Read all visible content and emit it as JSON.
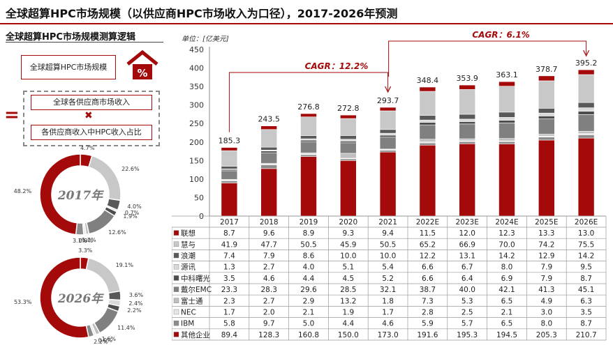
{
  "page": {
    "title": "全球超算HPC市场规模（以供应商HPC市场收入为口径），2017-2026年预测",
    "subtitle": "全球超算HPC市场规模测算逻辑",
    "logic": {
      "market_label": "全球超算HPC市场规模",
      "equals": "=",
      "factor1": "全球各供应商市场收入",
      "times": "✖",
      "factor2": "各供应商收入中HPC收入占比"
    },
    "house_icon": "percent-house-icon",
    "colors": {
      "accent": "#a50a0a"
    }
  },
  "donuts": [
    {
      "center": "2017年",
      "slices": [
        {
          "label": "4.7%",
          "value": 4.7,
          "color": "#a50a0a"
        },
        {
          "label": "22.6%",
          "value": 22.6,
          "color": "#c8c8c8"
        },
        {
          "label": "4.0%",
          "value": 4.0,
          "color": "#595959"
        },
        {
          "label": "0.7%",
          "value": 0.7,
          "color": "#d9d9d9"
        },
        {
          "label": "1.9%",
          "value": 1.9,
          "color": "#4d4d4d"
        },
        {
          "label": "12.6%",
          "value": 12.6,
          "color": "#808080"
        },
        {
          "label": "1.2%",
          "value": 1.2,
          "color": "#bfbfbf"
        },
        {
          "label": "0.9%",
          "value": 0.9,
          "color": "#e6e6e6"
        },
        {
          "label": "3.1%",
          "value": 3.1,
          "color": "#8c8c8c"
        },
        {
          "label": "48.2%",
          "value": 48.2,
          "color": "#a50a0a"
        }
      ]
    },
    {
      "center": "2026年",
      "slices": [
        {
          "label": "3.3%",
          "value": 3.3,
          "color": "#a50a0a"
        },
        {
          "label": "19.1%",
          "value": 19.1,
          "color": "#c8c8c8"
        },
        {
          "label": "3.6%",
          "value": 3.6,
          "color": "#595959"
        },
        {
          "label": "2.4%",
          "value": 2.4,
          "color": "#d9d9d9"
        },
        {
          "label": "2.2%",
          "value": 2.2,
          "color": "#4d4d4d"
        },
        {
          "label": "11.4%",
          "value": 11.4,
          "color": "#808080"
        },
        {
          "label": "1.6%",
          "value": 1.6,
          "color": "#bfbfbf"
        },
        {
          "label": "0.9%",
          "value": 0.9,
          "color": "#e6e6e6"
        },
        {
          "label": "2.2%",
          "value": 2.2,
          "color": "#8c8c8c"
        },
        {
          "label": "53.3%",
          "value": 53.3,
          "color": "#a50a0a"
        }
      ]
    }
  ],
  "chart_data": {
    "type": "bar",
    "stacked": true,
    "unit_label": "单位：[亿美元]",
    "ylim": [
      0,
      450
    ],
    "yticks": [
      0,
      50,
      100,
      150,
      200,
      250,
      300,
      350,
      400,
      450
    ],
    "categories": [
      "2017",
      "2018",
      "2019",
      "2020",
      "2021",
      "2022E",
      "2023E",
      "2024E",
      "2025E",
      "2026E"
    ],
    "totals": [
      185.3,
      243.5,
      276.8,
      272.8,
      293.7,
      348.4,
      353.9,
      363.1,
      378.7,
      395.2
    ],
    "series": [
      {
        "name": "其他企业",
        "color": "#a50a0a",
        "values": [
          89.4,
          128.3,
          160.8,
          150.0,
          173.0,
          191.6,
          195.3,
          194.5,
          205.3,
          210.7
        ]
      },
      {
        "name": "IBM",
        "color": "#8c8c8c",
        "values": [
          5.8,
          9.7,
          5.0,
          4.4,
          4.6,
          5.9,
          5.7,
          6.5,
          8.0,
          8.7
        ]
      },
      {
        "name": "NEC",
        "color": "#e6e6e6",
        "values": [
          1.7,
          2.0,
          2.1,
          1.9,
          1.7,
          2.8,
          2.5,
          2.1,
          3.0,
          3.5
        ]
      },
      {
        "name": "富士通",
        "color": "#bfbfbf",
        "values": [
          2.3,
          2.7,
          2.9,
          13.2,
          1.8,
          7.3,
          5.3,
          6.5,
          4.9,
          6.3
        ]
      },
      {
        "name": "戴尔EMC",
        "color": "#808080",
        "values": [
          23.3,
          28.3,
          29.6,
          28.5,
          32.1,
          38.7,
          40.0,
          42.1,
          41.3,
          45.1
        ]
      },
      {
        "name": "中科曙光",
        "color": "#4d4d4d",
        "values": [
          3.5,
          4.6,
          4.4,
          4.5,
          5.2,
          6.6,
          6.4,
          6.9,
          7.9,
          8.7
        ]
      },
      {
        "name": "源讯",
        "color": "#d9d9d9",
        "values": [
          1.3,
          2.7,
          4.0,
          5.1,
          5.4,
          6.6,
          6.7,
          8.0,
          7.9,
          9.5
        ]
      },
      {
        "name": "浪潮",
        "color": "#595959",
        "values": [
          7.4,
          7.9,
          8.6,
          10.0,
          10.0,
          12.2,
          13.1,
          14.2,
          12.9,
          14.2
        ]
      },
      {
        "name": "慧与",
        "color": "#c8c8c8",
        "values": [
          41.9,
          47.7,
          50.5,
          45.9,
          50.5,
          65.2,
          66.9,
          70.0,
          74.2,
          75.5
        ]
      },
      {
        "name": "联想",
        "color": "#a50a0a",
        "values": [
          8.7,
          9.6,
          8.9,
          9.3,
          9.4,
          11.5,
          12.0,
          12.3,
          13.3,
          13.0
        ]
      }
    ],
    "annotations": [
      {
        "text": "CAGR：12.2%",
        "from": "2017",
        "to": "2021"
      },
      {
        "text": "CAGR：6.1%",
        "from": "2021",
        "to": "2026E"
      }
    ]
  }
}
